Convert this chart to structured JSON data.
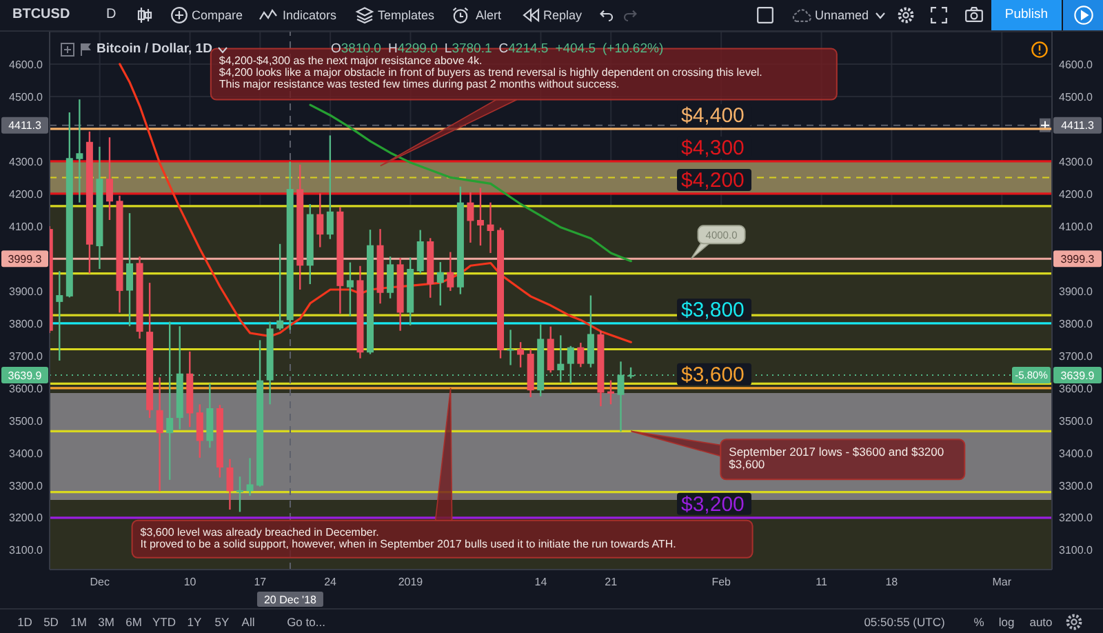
{
  "chart_data": {
    "type": "candlestick",
    "title": "Bitcoin / Dollar, 1D",
    "subtitle": "O3810.0 H4299.0 L3780.1 C4214.5 +404.5 (+10.62%)",
    "x": [
      "2018-11-26",
      "2018-11-27",
      "2018-11-28",
      "2018-11-29",
      "2018-11-30",
      "2018-12-01",
      "2018-12-02",
      "2018-12-03",
      "2018-12-04",
      "2018-12-05",
      "2018-12-06",
      "2018-12-07",
      "2018-12-08",
      "2018-12-09",
      "2018-12-10",
      "2018-12-11",
      "2018-12-12",
      "2018-12-13",
      "2018-12-14",
      "2018-12-15",
      "2018-12-16",
      "2018-12-17",
      "2018-12-18",
      "2018-12-19",
      "2018-12-20",
      "2018-12-21",
      "2018-12-22",
      "2018-12-23",
      "2018-12-24",
      "2018-12-25",
      "2018-12-26",
      "2018-12-27",
      "2018-12-28",
      "2018-12-29",
      "2018-12-30",
      "2018-12-31",
      "2019-01-01",
      "2019-01-02",
      "2019-01-03",
      "2019-01-04",
      "2019-01-05",
      "2019-01-06",
      "2019-01-07",
      "2019-01-08",
      "2019-01-09",
      "2019-01-10",
      "2019-01-11",
      "2019-01-12",
      "2019-01-13",
      "2019-01-14",
      "2019-01-15",
      "2019-01-16",
      "2019-01-17",
      "2019-01-18",
      "2019-01-19",
      "2019-01-20",
      "2019-01-21",
      "2019-01-22",
      "2019-01-23"
    ],
    "ohlc": [
      [
        4091,
        4100,
        3770,
        3777
      ],
      [
        3866,
        3961,
        3685,
        3887
      ],
      [
        3883,
        4451,
        3880,
        4310
      ],
      [
        4307,
        4491,
        4173,
        4325
      ],
      [
        4360,
        4392,
        3954,
        4043
      ],
      [
        4038,
        4345,
        3968,
        4246
      ],
      [
        4246,
        4374,
        4119,
        4176
      ],
      [
        4178,
        4194,
        3833,
        3900
      ],
      [
        3901,
        4140,
        3791,
        3985
      ],
      [
        3986,
        4006,
        3753,
        3774
      ],
      [
        3774,
        3925,
        3508,
        3532
      ],
      [
        3532,
        3633,
        3282,
        3461
      ],
      [
        3461,
        3805,
        3317,
        3508
      ],
      [
        3508,
        3791,
        3473,
        3645
      ],
      [
        3645,
        3713,
        3480,
        3522
      ],
      [
        3525,
        3550,
        3385,
        3437
      ],
      [
        3437,
        3614,
        3416,
        3538
      ],
      [
        3538,
        3548,
        3324,
        3355
      ],
      [
        3355,
        3381,
        3225,
        3282
      ],
      [
        3279,
        3327,
        3218,
        3285
      ],
      [
        3282,
        3384,
        3268,
        3303
      ],
      [
        3299,
        3748,
        3296,
        3624
      ],
      [
        3624,
        3805,
        3550,
        3784
      ],
      [
        3784,
        4045,
        3779,
        3809
      ],
      [
        3810,
        4299,
        3780.1,
        4214.5
      ],
      [
        4214,
        4290,
        3904,
        3978
      ],
      [
        3978,
        4168,
        3921,
        4137
      ],
      [
        4137,
        4201,
        4035,
        4074
      ],
      [
        4074,
        4380,
        4060,
        4145
      ],
      [
        4145,
        4159,
        3830,
        3915
      ],
      [
        3911,
        3988,
        3822,
        3933
      ],
      [
        3933,
        3977,
        3692,
        3710
      ],
      [
        3710,
        4089,
        3705,
        4041
      ],
      [
        4041,
        4091,
        3861,
        3894
      ],
      [
        3894,
        4006,
        3877,
        3982
      ],
      [
        3982,
        4002,
        3777,
        3833
      ],
      [
        3833,
        4003,
        3794,
        3968
      ],
      [
        3961,
        4088,
        3954,
        4053
      ],
      [
        4053,
        4063,
        3879,
        3921
      ],
      [
        3925,
        3989,
        3855,
        3958
      ],
      [
        3958,
        4020,
        3900,
        3911
      ],
      [
        3911,
        4222,
        3890,
        4173
      ],
      [
        4173,
        4204,
        4049,
        4116
      ],
      [
        4119,
        4218,
        4040,
        4102
      ],
      [
        4105,
        4173,
        4017,
        4085
      ],
      [
        4088,
        4095,
        3692,
        3717
      ],
      [
        3717,
        3780,
        3671,
        3720
      ],
      [
        3720,
        3742,
        3664,
        3703
      ],
      [
        3706,
        3720,
        3572,
        3593
      ],
      [
        3593,
        3797,
        3575,
        3752
      ],
      [
        3752,
        3790,
        3648,
        3655
      ],
      [
        3655,
        3763,
        3620,
        3675
      ],
      [
        3675,
        3730,
        3614,
        3726
      ],
      [
        3726,
        3740,
        3665,
        3675
      ],
      [
        3675,
        3886,
        3664,
        3767
      ],
      [
        3766,
        3777,
        3544,
        3586
      ],
      [
        3590,
        3624,
        3550,
        3583
      ],
      [
        3579,
        3682,
        3466,
        3641
      ],
      [
        3636,
        3664,
        3630,
        3639.9
      ]
    ],
    "colors": [
      "#eb4d5c",
      "#53b987",
      "#53b987",
      "#53b987",
      "#eb4d5c",
      "#53b987",
      "#eb4d5c",
      "#eb4d5c",
      "#53b987",
      "#eb4d5c",
      "#eb4d5c",
      "#eb4d5c",
      "#53b987",
      "#53b987",
      "#eb4d5c",
      "#eb4d5c",
      "#53b987",
      "#eb4d5c",
      "#eb4d5c",
      "#53b987",
      "#53b987",
      "#53b987",
      "#53b987",
      "#53b987",
      "#53b987",
      "#eb4d5c",
      "#53b987",
      "#eb4d5c",
      "#53b987",
      "#eb4d5c",
      "#53b987",
      "#eb4d5c",
      "#53b987",
      "#eb4d5c",
      "#53b987",
      "#eb4d5c",
      "#53b987",
      "#53b987",
      "#eb4d5c",
      "#53b987",
      "#eb4d5c",
      "#53b987",
      "#eb4d5c",
      "#eb4d5c",
      "#eb4d5c",
      "#eb4d5c",
      "#53b987",
      "#eb4d5c",
      "#eb4d5c",
      "#53b987",
      "#eb4d5c",
      "#53b987",
      "#53b987",
      "#eb4d5c",
      "#53b987",
      "#eb4d5c",
      "#eb4d5c",
      "#53b987",
      "#53b987"
    ],
    "series": [
      {
        "type": "line",
        "color": "#f2361d",
        "x": [
          "2018-12-03",
          "2018-12-04",
          "2018-12-05",
          "2018-12-07",
          "2018-12-09",
          "2018-12-11",
          "2018-12-13",
          "2018-12-15",
          "2018-12-16",
          "2018-12-18",
          "2018-12-19",
          "2018-12-20",
          "2018-12-21",
          "2018-12-22",
          "2018-12-24",
          "2018-12-26",
          "2018-12-27",
          "2018-12-28",
          "2018-12-30",
          "2019-01-01",
          "2019-01-04",
          "2019-01-06",
          "2019-01-07",
          "2019-01-09",
          "2019-01-10",
          "2019-01-12",
          "2019-01-13",
          "2019-01-15",
          "2019-01-17",
          "2019-01-18",
          "2019-01-20",
          "2019-01-23"
        ],
        "values": [
          4600,
          4543,
          4470,
          4293,
          4155,
          4029,
          3913,
          3810,
          3770,
          3760,
          3771,
          3794,
          3815,
          3862,
          3904,
          3904,
          3892,
          3904,
          3911,
          3916,
          3925,
          3954,
          3978,
          3986,
          3950,
          3905,
          3883,
          3855,
          3822,
          3810,
          3775,
          3742
        ]
      },
      {
        "type": "line",
        "color": "#26a032",
        "x": [
          "2018-12-22",
          "2018-12-24",
          "2018-12-26",
          "2018-12-28",
          "2018-12-30",
          "2019-01-01",
          "2019-01-05",
          "2019-01-09",
          "2019-01-12",
          "2019-01-14",
          "2019-01-16",
          "2019-01-19",
          "2019-01-21",
          "2019-01-23"
        ],
        "values": [
          4474,
          4442,
          4404,
          4362,
          4326,
          4296,
          4250,
          4231,
          4168,
          4132,
          4096,
          4062,
          4017,
          3992
        ]
      }
    ],
    "xlim": [
      "2018-11-26",
      "2019-03-06"
    ],
    "xticks": [
      {
        "value": "2018-12-01",
        "label": "Dec"
      },
      {
        "value": "2018-12-10",
        "label": "10"
      },
      {
        "value": "2018-12-17",
        "label": "17"
      },
      {
        "value": "2018-12-24",
        "label": "24"
      },
      {
        "value": "2019-01-01",
        "label": "2019"
      },
      {
        "value": "2019-01-14",
        "label": "14"
      },
      {
        "value": "2019-01-21",
        "label": "21"
      },
      {
        "value": "2019-02-01",
        "label": "Feb"
      },
      {
        "value": "2019-02-11",
        "label": "11"
      },
      {
        "value": "2019-02-18",
        "label": "18"
      },
      {
        "value": "2019-03-01",
        "label": "Mar"
      }
    ],
    "ylim": [
      3040,
      4700
    ],
    "yticks": [
      {
        "value": 3100,
        "label": "3100.0"
      },
      {
        "value": 3200,
        "label": "3200.0"
      },
      {
        "value": 3300,
        "label": "3300.0"
      },
      {
        "value": 3400,
        "label": "3400.0"
      },
      {
        "value": 3500,
        "label": "3500.0"
      },
      {
        "value": 3600,
        "label": "3600.0"
      },
      {
        "value": 3700,
        "label": "3700.0"
      },
      {
        "value": 3800,
        "label": "3800.0"
      },
      {
        "value": 3900,
        "label": "3900.0"
      },
      {
        "value": 4000,
        "label": null
      },
      {
        "value": 4100,
        "label": "4100.0"
      },
      {
        "value": 4200,
        "label": "4200.0"
      },
      {
        "value": 4300,
        "label": "4300.0"
      },
      {
        "value": 4400,
        "label": null
      },
      {
        "value": 4500,
        "label": "4500.0"
      },
      {
        "value": 4600,
        "label": "4600.0"
      }
    ],
    "y2lim": [
      3040,
      4700
    ],
    "y2ticks": [
      {
        "value": 3100,
        "label": "3100.0"
      },
      {
        "value": 3200,
        "label": "3200.0"
      },
      {
        "value": 3300,
        "label": "3300.0"
      },
      {
        "value": 3400,
        "label": "3400.0"
      },
      {
        "value": 3500,
        "label": "3500.0"
      },
      {
        "value": 3600,
        "label": "3600.0"
      },
      {
        "value": 3700,
        "label": "3700.0"
      },
      {
        "value": 3800,
        "label": "3800.0"
      },
      {
        "value": 3900,
        "label": "3900.0"
      },
      {
        "value": 4000,
        "label": null
      },
      {
        "value": 4100,
        "label": "4100.0"
      },
      {
        "value": 4200,
        "label": "4200.0"
      },
      {
        "value": 4300,
        "label": "4300.0"
      },
      {
        "value": 4400,
        "label": null
      },
      {
        "value": 4500,
        "label": "4500.0"
      },
      {
        "value": 4600,
        "label": "4600.0"
      }
    ],
    "grid": true,
    "bands": [
      {
        "axis": "y",
        "from": 3040,
        "to": 4162,
        "color": "#2d2f20"
      },
      {
        "axis": "y",
        "from": 4200,
        "to": 4300,
        "color": "#857a55"
      },
      {
        "axis": "y",
        "from": 3255,
        "to": 3585,
        "color": "#78777a"
      }
    ],
    "ref_lines": [
      {
        "axis": "y",
        "value": 4411.3,
        "label": "4411.3",
        "color": "#5d606b",
        "line_style": "dashed"
      },
      {
        "axis": "x",
        "value": "2018-12-20",
        "label": "20 Dec '18",
        "color": "#5d606b",
        "line_style": "dashed"
      },
      {
        "axis": "y",
        "value": 3999.3,
        "label": "3999.3",
        "color": "#f0a8a0"
      },
      {
        "axis": "y",
        "value": 3639.9,
        "label": "3639.9",
        "color": "#53b987",
        "line_style": "dotted"
      },
      {
        "axis": "y",
        "value": 4400,
        "label": "$4,400",
        "color": "#f5b26b"
      },
      {
        "axis": "y",
        "value": 4300,
        "label": "$4,300",
        "color": "#e0151b"
      },
      {
        "axis": "y",
        "value": 4200,
        "label": "$4,200",
        "color": "#e0151b"
      },
      {
        "axis": "y",
        "value": 3800,
        "label": "$3,800",
        "color": "#17e8f0"
      },
      {
        "axis": "y",
        "value": 3600,
        "label": "$3,600",
        "color": "#f5a030"
      },
      {
        "axis": "y",
        "value": 3200,
        "label": "$3,200",
        "color": "#9a1fe0"
      },
      {
        "axis": "y",
        "value": 4250,
        "color": "#d8d020",
        "line_style": "dashed"
      },
      {
        "axis": "y",
        "value": 4162,
        "color": "#d8d820"
      },
      {
        "axis": "y",
        "value": 3954,
        "color": "#d8d820"
      },
      {
        "axis": "y",
        "value": 3825,
        "color": "#d8d820"
      },
      {
        "axis": "y",
        "value": 3720,
        "color": "#d8d820"
      },
      {
        "axis": "y",
        "value": 3614,
        "color": "#d8d820"
      },
      {
        "axis": "y",
        "value": 3467,
        "color": "#d8d820"
      },
      {
        "axis": "y",
        "value": 3279,
        "color": "#d8d820"
      }
    ],
    "annotations": [
      "BTCUSD",
      "D",
      "Compare",
      "Indicators",
      "Templates",
      "Alert",
      "Replay",
      "Unnamed",
      "Publish",
      "-5.80%",
      {
        "text": "$4,200-$4,300 as the next major resistance above 4k.\n$4,200 looks like a major obstacle in front of buyers as trend reversal is highly dependent on crossing this level.\nThis major resistance was tested few times during past 2 months without success.",
        "x": "2018-12-29",
        "y": 4286
      },
      {
        "text": "4000.0",
        "x": "2019-01-29",
        "y": 3999.3
      },
      {
        "text": "September 2017 lows - $3600 and $3200\n$3,600",
        "x": "2019-01-23",
        "y": 3467
      },
      {
        "text": "$3,600 level was already breached in December.\nIt proved to be a solid support, however, when in September 2017 bulls used it to initiate the run towards ATH.",
        "x": "2019-01-05",
        "y": 3600
      },
      "1D",
      "5D",
      "1M",
      "3M",
      "6M",
      "YTD",
      "1Y",
      "5Y",
      "All",
      "Go to...",
      "05:50:55 (UTC)",
      "%",
      "log",
      "auto"
    ]
  }
}
